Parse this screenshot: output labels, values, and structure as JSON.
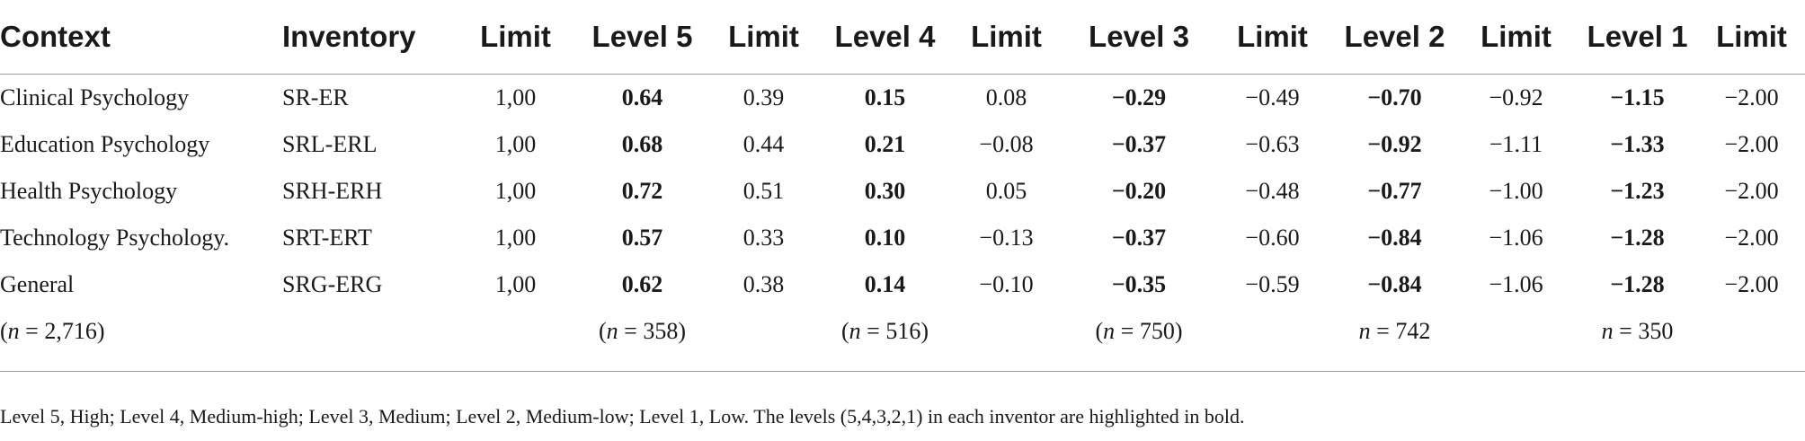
{
  "table": {
    "headers": [
      "Context",
      "Inventory",
      "Limit",
      "Level 5",
      "Limit",
      "Level 4",
      "Limit",
      "Level 3",
      "Limit",
      "Level 2",
      "Limit",
      "Level 1",
      "Limit"
    ],
    "rows": [
      [
        "Clinical Psychology",
        "SR-ER",
        "1,00",
        "0.64",
        "0.39",
        "0.15",
        "0.08",
        "−0.29",
        "−0.49",
        "−0.70",
        "−0.92",
        "−1.15",
        "−2.00"
      ],
      [
        "Education Psychology",
        "SRL-ERL",
        "1,00",
        "0.68",
        "0.44",
        "0.21",
        "−0.08",
        "−0.37",
        "−0.63",
        "−0.92",
        "−1.11",
        "−1.33",
        "−2.00"
      ],
      [
        "Health Psychology",
        "SRH-ERH",
        "1,00",
        "0.72",
        "0.51",
        "0.30",
        "0.05",
        "−0.20",
        "−0.48",
        "−0.77",
        "−1.00",
        "−1.23",
        "−2.00"
      ],
      [
        "Technology Psychology.",
        "SRT-ERT",
        "1,00",
        "0.57",
        "0.33",
        "0.10",
        "−0.13",
        "−0.37",
        "−0.60",
        "−0.84",
        "−1.06",
        "−1.28",
        "−2.00"
      ],
      [
        "General",
        "SRG-ERG",
        "1,00",
        "0.62",
        "0.38",
        "0.14",
        "−0.10",
        "−0.35",
        "−0.59",
        "−0.84",
        "−1.06",
        "−1.28",
        "−2.00"
      ]
    ],
    "counts": {
      "context": {
        "open": "(",
        "n": "n",
        "eq": " = 2,716)"
      },
      "level5": {
        "open": "(",
        "n": "n",
        "eq": " = 358)"
      },
      "level4": {
        "open": "(",
        "n": "n",
        "eq": " = 516)"
      },
      "level3": {
        "open": "(",
        "n": "n",
        "eq": " = 750)"
      },
      "level2": {
        "open": "",
        "n": "n",
        "eq": " = 742"
      },
      "level1": {
        "open": "",
        "n": "n",
        "eq": " = 350"
      }
    }
  },
  "footnote": "Level 5, High; Level 4, Medium-high; Level 3, Medium; Level 2, Medium-low; Level 1, Low. The levels (5,4,3,2,1) in each inventor are highlighted in bold."
}
